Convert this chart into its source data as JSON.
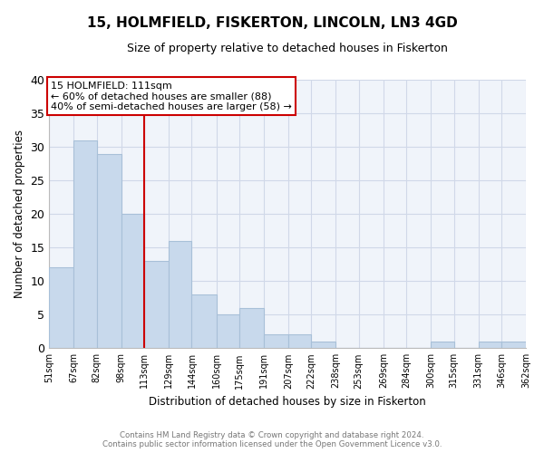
{
  "title": "15, HOLMFIELD, FISKERTON, LINCOLN, LN3 4GD",
  "subtitle": "Size of property relative to detached houses in Fiskerton",
  "xlabel": "Distribution of detached houses by size in Fiskerton",
  "ylabel": "Number of detached properties",
  "bins": [
    51,
    67,
    82,
    98,
    113,
    129,
    144,
    160,
    175,
    191,
    207,
    222,
    238,
    253,
    269,
    284,
    300,
    315,
    331,
    346,
    362
  ],
  "counts": [
    12,
    31,
    29,
    20,
    13,
    16,
    8,
    5,
    6,
    2,
    2,
    1,
    0,
    0,
    0,
    0,
    1,
    0,
    1,
    1
  ],
  "bar_color": "#c8d9ec",
  "bar_edge_color": "#a8c0d8",
  "vline_x": 113,
  "vline_color": "#cc0000",
  "ylim": [
    0,
    40
  ],
  "yticks": [
    0,
    5,
    10,
    15,
    20,
    25,
    30,
    35,
    40
  ],
  "annotation_title": "15 HOLMFIELD: 111sqm",
  "annotation_line1": "← 60% of detached houses are smaller (88)",
  "annotation_line2": "40% of semi-detached houses are larger (58) →",
  "annotation_box_color": "#ffffff",
  "annotation_box_edge": "#cc0000",
  "footer_line1": "Contains HM Land Registry data © Crown copyright and database right 2024.",
  "footer_line2": "Contains public sector information licensed under the Open Government Licence v3.0.",
  "tick_labels": [
    "51sqm",
    "67sqm",
    "82sqm",
    "98sqm",
    "113sqm",
    "129sqm",
    "144sqm",
    "160sqm",
    "175sqm",
    "191sqm",
    "207sqm",
    "222sqm",
    "238sqm",
    "253sqm",
    "269sqm",
    "284sqm",
    "300sqm",
    "315sqm",
    "331sqm",
    "346sqm",
    "362sqm"
  ],
  "background_color": "#f0f4fa",
  "grid_color": "#d0d8e8"
}
